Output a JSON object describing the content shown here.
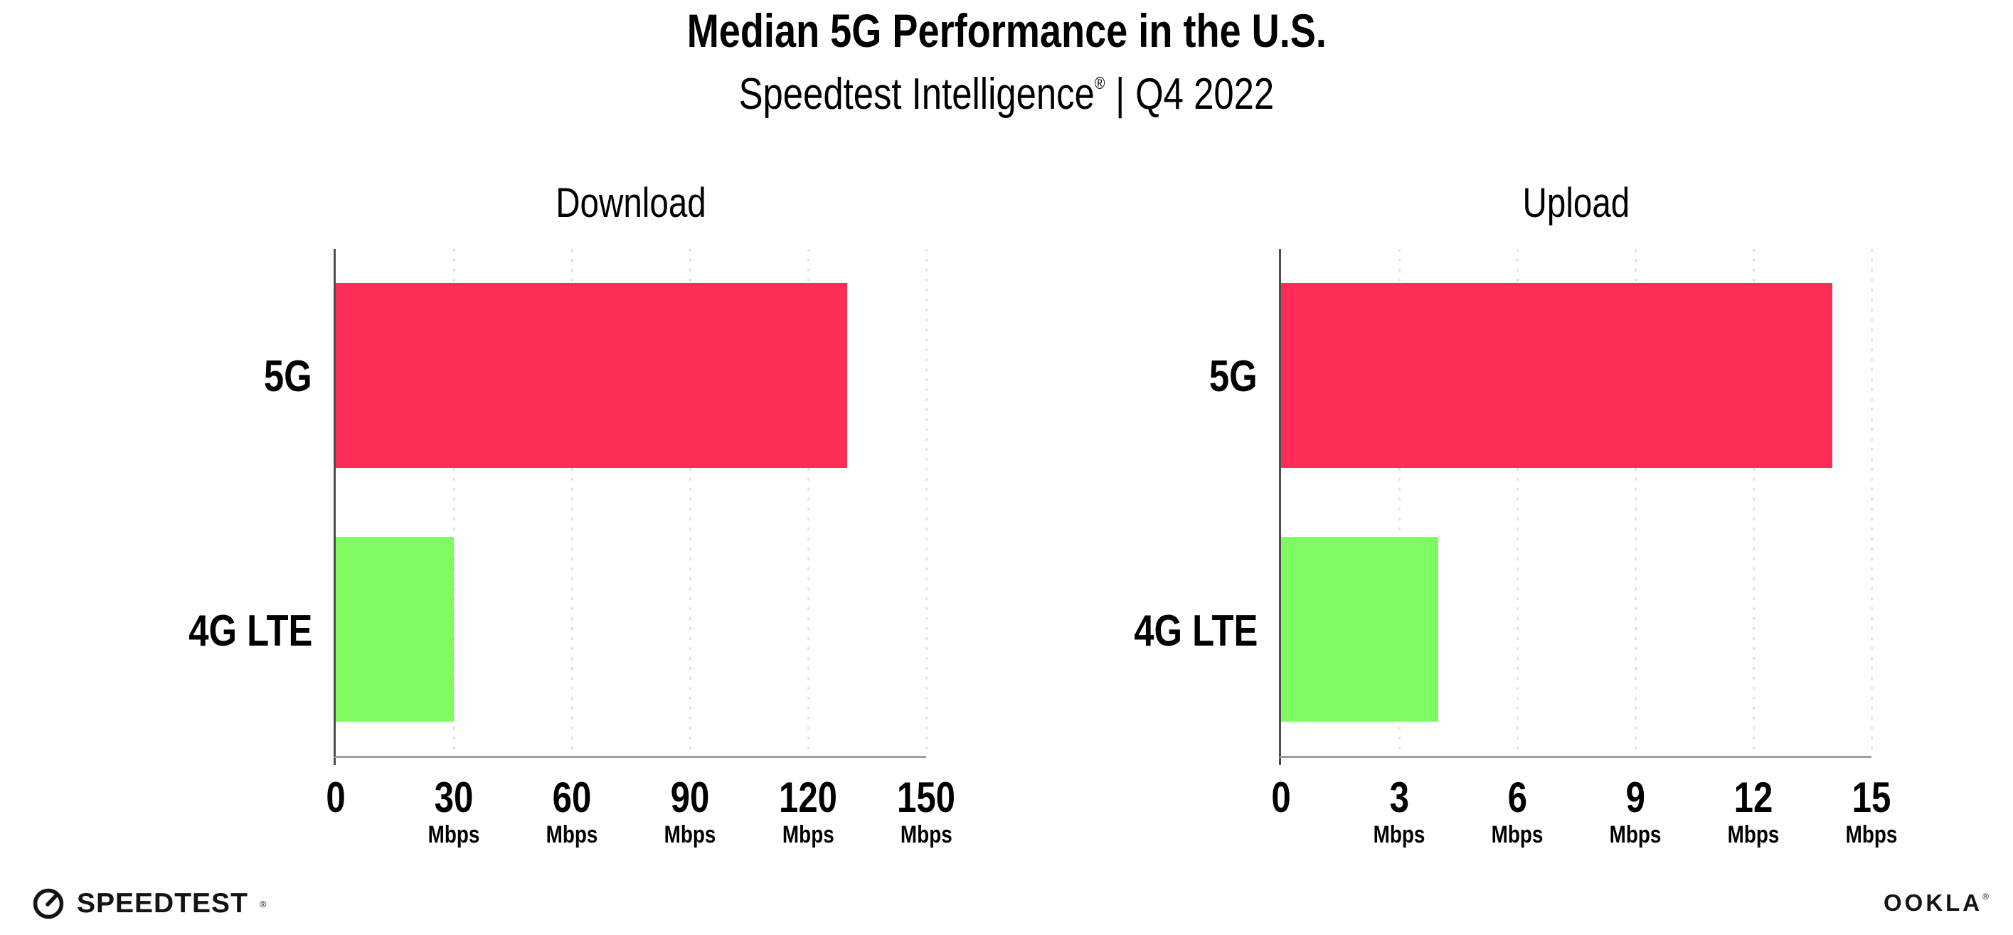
{
  "header": {
    "title": "Median 5G Performance in the U.S.",
    "subtitle": {
      "brand": "Speedtest Intelligence",
      "registered_mark": "®",
      "separator": "|",
      "period": "Q4 2022"
    }
  },
  "chart_data": [
    {
      "type": "bar",
      "orientation": "horizontal",
      "title": "Download",
      "categories": [
        "5G",
        "4G LTE"
      ],
      "values": [
        130,
        30
      ],
      "unit": "Mbps",
      "xlim": [
        0,
        150
      ],
      "xticks": [
        0,
        30,
        60,
        90,
        120,
        150
      ],
      "bar_colors": [
        "#fc2e57",
        "#80fc63"
      ],
      "grid": true,
      "legend_position": "none"
    },
    {
      "type": "bar",
      "orientation": "horizontal",
      "title": "Upload",
      "categories": [
        "5G",
        "4G LTE"
      ],
      "values": [
        14,
        4
      ],
      "unit": "Mbps",
      "xlim": [
        0,
        15
      ],
      "xticks": [
        0,
        3,
        6,
        9,
        12,
        15
      ],
      "bar_colors": [
        "#fc2e57",
        "#80fc63"
      ],
      "grid": true,
      "legend_position": "none"
    }
  ],
  "colors": {
    "bar_5g": "#fc2e57",
    "bar_4g_lte": "#80fc63",
    "gridline": "#e2e2ec",
    "y_axis": "#4d4d4d",
    "x_axis": "#9e9e9e",
    "text": "#000000"
  },
  "footer": {
    "speedtest_wordmark": "SPEEDTEST",
    "speedtest_mark": "®",
    "ookla_wordmark": "OOKLA",
    "ookla_mark": "®"
  }
}
